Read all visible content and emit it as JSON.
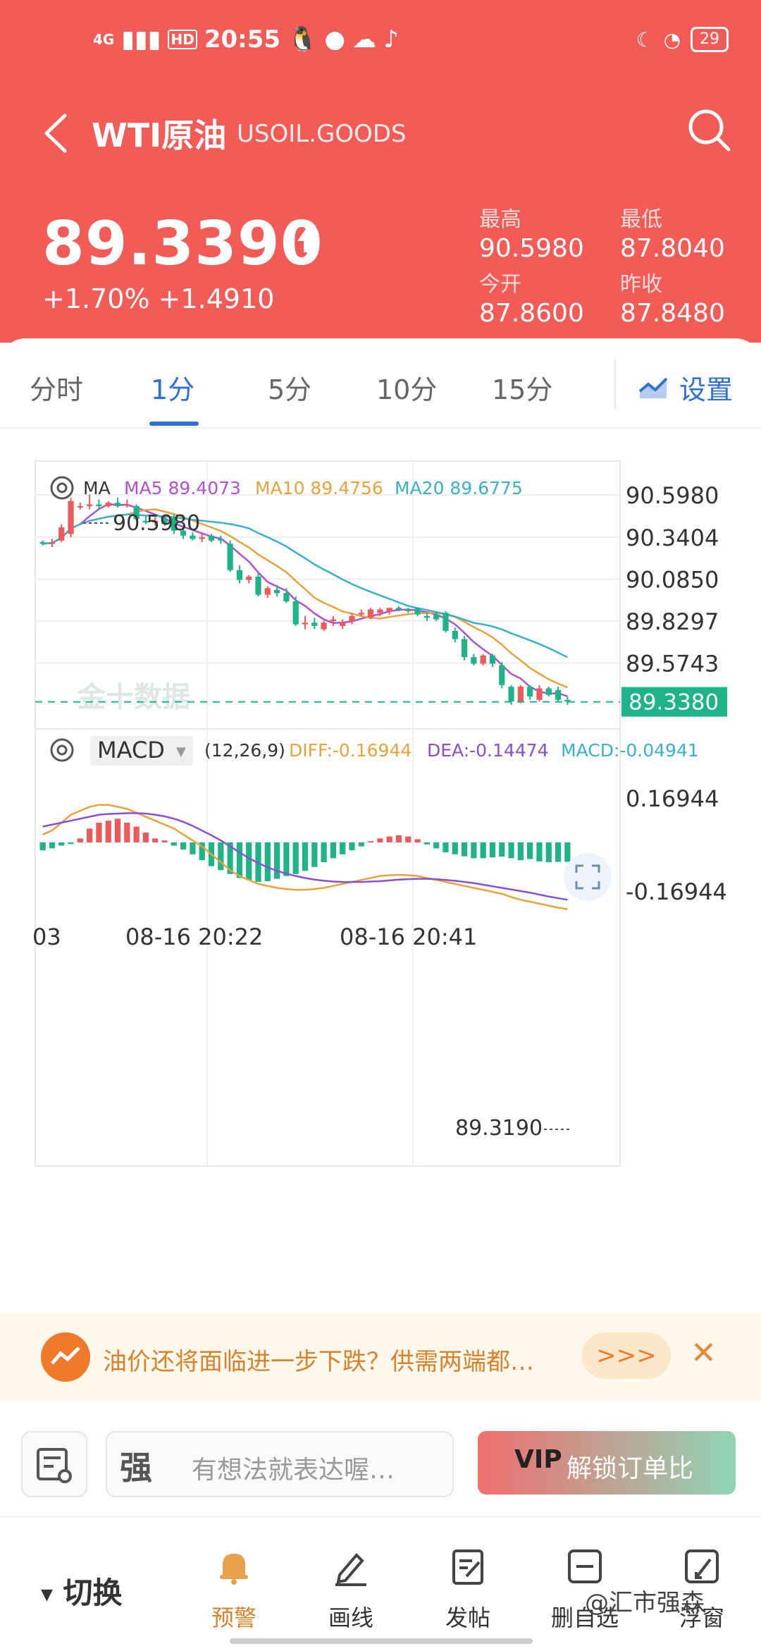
{
  "status": {
    "network": "4G",
    "hd": "HD",
    "time": "20:55",
    "battery": "29"
  },
  "header": {
    "title": "WTI原油",
    "subtitle": "USOIL.GOODS"
  },
  "quote": {
    "price": "89.3390",
    "change_pct": "+1.70%",
    "change_abs": "+1.4910",
    "high_label": "最高",
    "high": "90.5980",
    "low_label": "最低",
    "low": "87.8040",
    "open_label": "今开",
    "open": "87.8600",
    "prev_label": "昨收",
    "prev_close": "87.8480"
  },
  "tabs": [
    "分时",
    "1分",
    "5分",
    "10分",
    "15分"
  ],
  "active_tab": "1分",
  "settings_label": "设置",
  "colors": {
    "header": "#f25b56",
    "up": "#ee5a5a",
    "down": "#1fb38a",
    "ma5": "#b24fd2",
    "ma10": "#e8a33a",
    "ma20": "#3ab0cc",
    "accent": "#2e6fd8"
  },
  "chart_data": {
    "type": "candlestick",
    "indicator_label": "MA",
    "ma5_label": "MA5 89.4073",
    "ma10_label": "MA10 89.4756",
    "ma20_label": "MA20 89.6775",
    "y_ticks": [
      "90.5980",
      "90.3404",
      "90.0850",
      "89.8297",
      "89.5743",
      "89.3190"
    ],
    "ylim": [
      89.319,
      90.598
    ],
    "max_label": "90.5980",
    "min_label": "89.3190",
    "current_label": "89.3380",
    "current_value": 89.338,
    "watermark": "金十数据",
    "x_labels": [
      "03",
      "08-16 20:22",
      "08-16 20:41"
    ],
    "candles": [
      [
        90.31,
        90.32,
        90.29,
        90.3
      ],
      [
        90.3,
        90.33,
        90.28,
        90.31
      ],
      [
        90.32,
        90.42,
        90.31,
        90.4
      ],
      [
        90.36,
        90.58,
        90.34,
        90.56
      ],
      [
        90.53,
        90.55,
        90.51,
        90.53
      ],
      [
        90.53,
        90.6,
        90.51,
        90.54
      ],
      [
        90.54,
        90.57,
        90.51,
        90.53
      ],
      [
        90.53,
        90.56,
        90.52,
        90.55
      ],
      [
        90.55,
        90.58,
        90.52,
        90.53
      ],
      [
        90.54,
        90.57,
        90.52,
        90.54
      ],
      [
        90.53,
        90.54,
        90.44,
        90.45
      ],
      [
        90.44,
        90.47,
        90.42,
        90.43
      ],
      [
        90.43,
        90.47,
        90.41,
        90.44
      ],
      [
        90.45,
        90.48,
        90.41,
        90.42
      ],
      [
        90.46,
        90.48,
        90.36,
        90.38
      ],
      [
        90.38,
        90.4,
        90.33,
        90.35
      ],
      [
        90.35,
        90.37,
        90.32,
        90.33
      ],
      [
        90.33,
        90.37,
        90.31,
        90.34
      ],
      [
        90.35,
        90.36,
        90.31,
        90.32
      ],
      [
        90.33,
        90.35,
        90.3,
        90.32
      ],
      [
        90.3,
        90.32,
        90.13,
        90.14
      ],
      [
        90.14,
        90.17,
        90.06,
        90.08
      ],
      [
        90.08,
        90.11,
        90.06,
        90.1
      ],
      [
        90.1,
        90.12,
        89.98,
        89.99
      ],
      [
        89.99,
        90.04,
        89.97,
        90.03
      ],
      [
        90.02,
        90.05,
        89.98,
        90.0
      ],
      [
        90.0,
        90.03,
        89.94,
        89.95
      ],
      [
        89.95,
        89.98,
        89.8,
        89.81
      ],
      [
        89.81,
        89.86,
        89.78,
        89.82
      ],
      [
        89.82,
        89.85,
        89.78,
        89.8
      ],
      [
        89.78,
        89.83,
        89.77,
        89.82
      ],
      [
        89.83,
        89.86,
        89.8,
        89.84
      ],
      [
        89.8,
        89.84,
        89.78,
        89.82
      ],
      [
        89.83,
        89.88,
        89.81,
        89.86
      ],
      [
        89.87,
        89.9,
        89.86,
        89.88
      ],
      [
        89.85,
        89.91,
        89.84,
        89.9
      ],
      [
        89.88,
        89.91,
        89.86,
        89.9
      ],
      [
        89.89,
        89.91,
        89.87,
        89.91
      ],
      [
        89.91,
        89.92,
        89.89,
        89.9
      ],
      [
        89.9,
        89.91,
        89.88,
        89.89
      ],
      [
        89.91,
        89.91,
        89.86,
        89.87
      ],
      [
        89.86,
        89.88,
        89.83,
        89.85
      ],
      [
        89.87,
        89.89,
        89.83,
        89.84
      ],
      [
        89.88,
        89.89,
        89.76,
        89.77
      ],
      [
        89.77,
        89.79,
        89.7,
        89.72
      ],
      [
        89.72,
        89.74,
        89.59,
        89.61
      ],
      [
        89.61,
        89.63,
        89.56,
        89.57
      ],
      [
        89.57,
        89.63,
        89.56,
        89.62
      ],
      [
        89.62,
        89.63,
        89.55,
        89.57
      ],
      [
        89.56,
        89.58,
        89.42,
        89.44
      ],
      [
        89.43,
        89.44,
        89.32,
        89.34
      ],
      [
        89.34,
        89.44,
        89.33,
        89.43
      ],
      [
        89.43,
        89.44,
        89.35,
        89.37
      ],
      [
        89.35,
        89.44,
        89.34,
        89.42
      ],
      [
        89.42,
        89.43,
        89.37,
        89.38
      ],
      [
        89.41,
        89.43,
        89.34,
        89.35
      ],
      [
        89.35,
        89.37,
        89.32,
        89.34
      ]
    ],
    "macd": {
      "label": "MACD",
      "params": "(12,26,9)",
      "diff_label": "DIFF:-0.16944",
      "dea_label": "DEA:-0.14474",
      "macd_label": "MACD:-0.04941",
      "y_ticks": [
        "0.16944",
        "-0.16944"
      ],
      "ylim": [
        -0.16944,
        0.16944
      ],
      "hist": [
        -0.02,
        -0.015,
        -0.008,
        -0.004,
        0.01,
        0.035,
        0.05,
        0.055,
        0.06,
        0.05,
        0.04,
        0.025,
        0.01,
        0.005,
        -0.008,
        -0.018,
        -0.03,
        -0.045,
        -0.06,
        -0.07,
        -0.08,
        -0.09,
        -0.095,
        -0.1,
        -0.098,
        -0.092,
        -0.085,
        -0.08,
        -0.072,
        -0.062,
        -0.05,
        -0.04,
        -0.03,
        -0.02,
        -0.01,
        0.003,
        0.01,
        0.015,
        0.018,
        0.015,
        0.008,
        -0.005,
        -0.015,
        -0.025,
        -0.03,
        -0.035,
        -0.04,
        -0.04,
        -0.038,
        -0.036,
        -0.04,
        -0.045,
        -0.042,
        -0.048,
        -0.05,
        -0.049,
        -0.049
      ],
      "diff": [
        0.02,
        0.03,
        0.05,
        0.07,
        0.08,
        0.09,
        0.095,
        0.095,
        0.09,
        0.085,
        0.075,
        0.065,
        0.055,
        0.045,
        0.035,
        0.02,
        0.005,
        -0.01,
        -0.03,
        -0.05,
        -0.07,
        -0.085,
        -0.095,
        -0.105,
        -0.11,
        -0.115,
        -0.118,
        -0.12,
        -0.12,
        -0.118,
        -0.115,
        -0.11,
        -0.105,
        -0.1,
        -0.095,
        -0.09,
        -0.085,
        -0.083,
        -0.082,
        -0.083,
        -0.085,
        -0.09,
        -0.095,
        -0.1,
        -0.105,
        -0.11,
        -0.115,
        -0.12,
        -0.125,
        -0.13,
        -0.138,
        -0.145,
        -0.15,
        -0.155,
        -0.16,
        -0.165,
        -0.169
      ],
      "dea": [
        0.04,
        0.045,
        0.05,
        0.055,
        0.06,
        0.065,
        0.07,
        0.072,
        0.073,
        0.074,
        0.074,
        0.073,
        0.07,
        0.066,
        0.06,
        0.052,
        0.042,
        0.03,
        0.018,
        0.005,
        -0.01,
        -0.025,
        -0.04,
        -0.052,
        -0.063,
        -0.072,
        -0.079,
        -0.085,
        -0.09,
        -0.094,
        -0.097,
        -0.099,
        -0.1,
        -0.1,
        -0.1,
        -0.099,
        -0.098,
        -0.096,
        -0.094,
        -0.093,
        -0.092,
        -0.092,
        -0.093,
        -0.095,
        -0.097,
        -0.1,
        -0.103,
        -0.107,
        -0.111,
        -0.115,
        -0.119,
        -0.123,
        -0.127,
        -0.132,
        -0.137,
        -0.141,
        -0.145
      ]
    }
  },
  "promo": {
    "text": "油价还将面临进一步下跌？供需两端都…",
    "more": ">>>"
  },
  "composer": {
    "placeholder": "有想法就表达喔…",
    "emoji_glyph": "强",
    "vip_tag": "VIP",
    "vip_label": "解锁订单比"
  },
  "bottom_nav": {
    "switch_label": "切换",
    "items": [
      "预警",
      "画线",
      "发帖",
      "删自选",
      "浮窗"
    ]
  },
  "overlay_watermark": "@汇市强森"
}
